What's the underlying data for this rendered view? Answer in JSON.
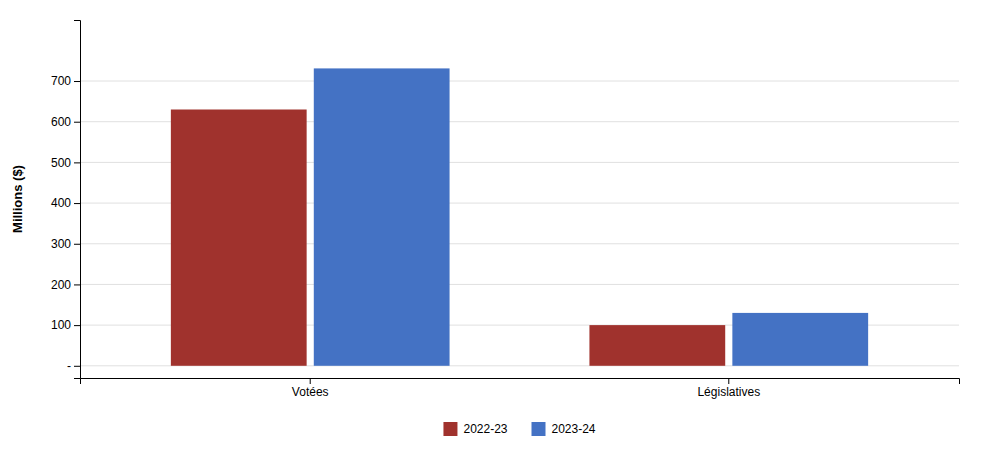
{
  "chart_data": {
    "type": "bar",
    "categories": [
      "Votées",
      "Législatives"
    ],
    "series": [
      {
        "name": "2022-23",
        "color": "#A0322D",
        "values": [
          630,
          100
        ]
      },
      {
        "name": "2023-24",
        "color": "#4472C4",
        "values": [
          731,
          130
        ]
      }
    ],
    "ylabel": "Millions ($)",
    "ylim": [
      -30,
      850
    ],
    "yticks": [
      {
        "value": 0,
        "label": "-"
      },
      100,
      200,
      300,
      400,
      500,
      600,
      700
    ],
    "grid": true,
    "legend": "bottom"
  }
}
